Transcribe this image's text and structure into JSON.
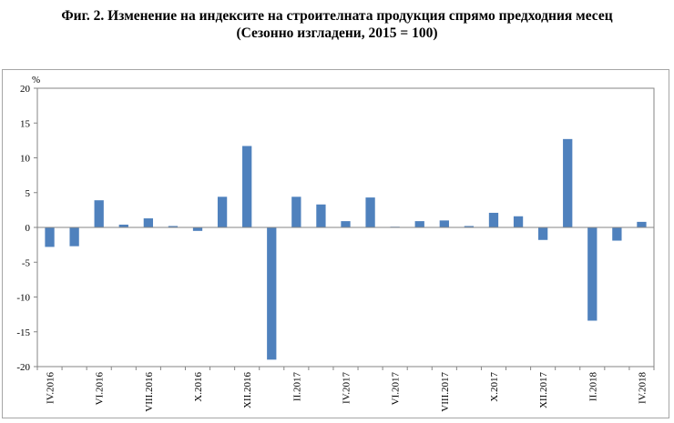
{
  "title_line1": "Фиг. 2. Изменение на индексите на строителната продукция спрямо предходния месец",
  "title_line2": "(Сезонно изгладени, 2015 = 100)",
  "colors": {
    "bar": "#4f81bd",
    "axis": "#868686",
    "frame": "#a6a6a6"
  },
  "chart_data": {
    "type": "bar",
    "ylabel": "%",
    "ylim": [
      -20,
      20
    ],
    "yticks": [
      20,
      15,
      10,
      5,
      0,
      -5,
      -10,
      -15,
      -20
    ],
    "grid": false,
    "categories": [
      "IV.2016",
      "V.2016",
      "VI.2016",
      "VII.2016",
      "VIII.2016",
      "IX.2016",
      "X.2016",
      "XI.2016",
      "XII.2016",
      "I.2017",
      "II.2017",
      "III.2017",
      "IV.2017",
      "V.2017",
      "VI.2017",
      "VII.2017",
      "VIII.2017",
      "IX.2017",
      "X.2017",
      "XI.2017",
      "XII.2017",
      "I.2018",
      "II.2018",
      "III.2018",
      "IV.2018"
    ],
    "x_tick_labels": [
      "IV.2016",
      "",
      "VI.2016",
      "",
      "VIII.2016",
      "",
      "X.2016",
      "",
      "XII.2016",
      "",
      "II.2017",
      "",
      "IV.2017",
      "",
      "VI.2017",
      "",
      "VIII.2017",
      "",
      "X.2017",
      "",
      "XII.2017",
      "",
      "II.2018",
      "",
      "IV.2018"
    ],
    "values": [
      -2.8,
      -2.7,
      3.9,
      0.4,
      1.3,
      0.2,
      -0.5,
      4.4,
      11.7,
      -19.0,
      4.4,
      3.3,
      0.9,
      4.3,
      0.1,
      0.9,
      1.0,
      0.2,
      2.1,
      1.6,
      -1.8,
      12.7,
      -13.4,
      -1.9,
      0.8
    ]
  }
}
